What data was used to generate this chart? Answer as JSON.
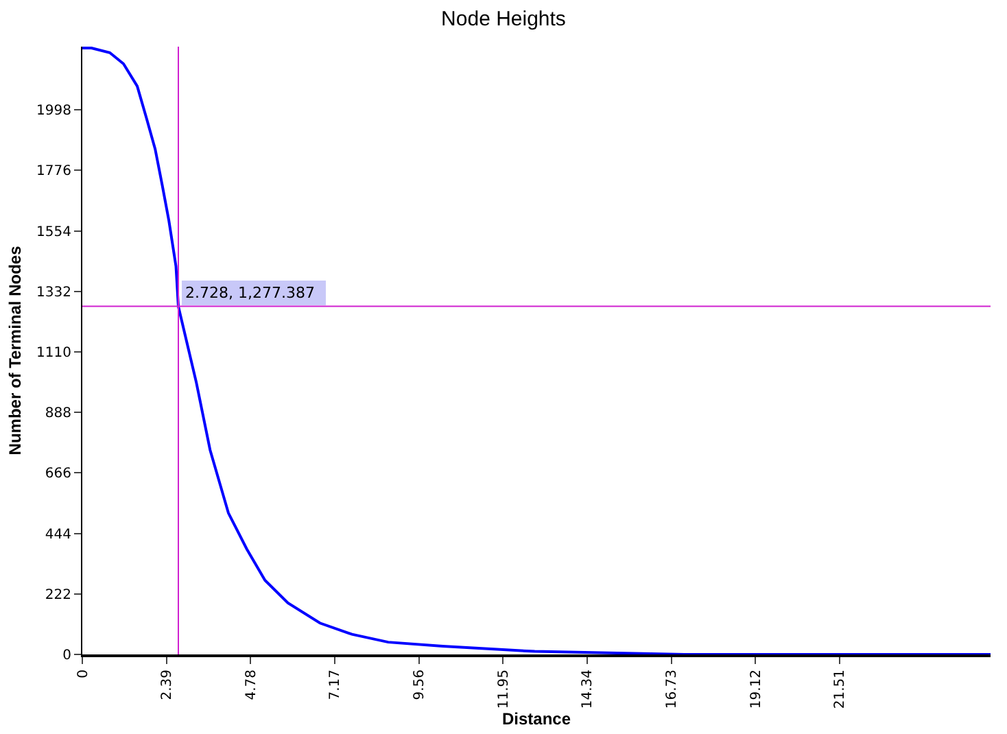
{
  "chart_data": {
    "type": "line",
    "title": "Node Heights",
    "xlabel": "Distance",
    "ylabel": "Number of Terminal Nodes",
    "x": [
      0,
      0.26,
      0.78,
      1.17,
      1.56,
      1.82,
      2.07,
      2.27,
      2.46,
      2.66,
      2.728,
      3.24,
      3.63,
      4.15,
      4.67,
      5.19,
      5.84,
      6.75,
      7.66,
      8.69,
      10.24,
      12.85,
      15.2,
      17.1,
      21,
      25.8
    ],
    "series": [
      {
        "color": "#0000ff",
        "values": [
          2225,
          2225,
          2208,
          2167,
          2085,
          1969,
          1854,
          1722,
          1591,
          1425,
          1277,
          997,
          750,
          519,
          387,
          272,
          189,
          115,
          74,
          45,
          30,
          11,
          5,
          0,
          0,
          0
        ]
      }
    ],
    "xlim": [
      0,
      25.8
    ],
    "xticks": [
      0,
      2.39,
      4.78,
      7.17,
      9.56,
      11.95,
      14.34,
      16.73,
      19.12,
      21.51
    ],
    "ylim": [
      0,
      2230
    ],
    "yticks": [
      0,
      222,
      444,
      666,
      888,
      1110,
      1332,
      1554,
      1776,
      1998
    ],
    "grid": false,
    "marker": "none",
    "line_style": "solid",
    "ref_lines": [
      {
        "axis": "x",
        "value": 2.728,
        "color": "#d020d0"
      },
      {
        "axis": "y",
        "value": 1277.387,
        "color": "#d020d0"
      }
    ],
    "annotations": [
      {
        "text": "2.728, 1,277.387",
        "x": 2.728,
        "y": 1277.387
      }
    ]
  }
}
